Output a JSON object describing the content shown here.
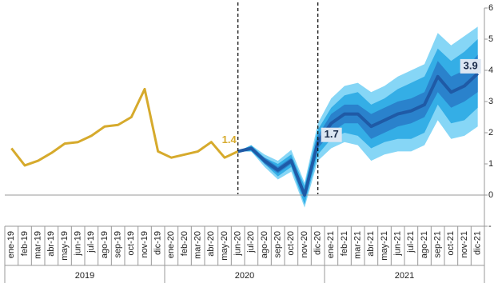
{
  "chart_data": {
    "type": "line",
    "categories": [
      "ene-19",
      "feb-19",
      "mar-19",
      "abr-19",
      "may-19",
      "jun-19",
      "jul-19",
      "ago-19",
      "sep-19",
      "oct-19",
      "nov-19",
      "dic-19",
      "ene-20",
      "feb-20",
      "mar-20",
      "abr-20",
      "may-20",
      "jun-20",
      "jul-20",
      "ago-20",
      "sep-20",
      "oct-20",
      "nov-20",
      "dic-20",
      "ene-21",
      "feb-21",
      "mar-21",
      "abr-21",
      "may-21",
      "jun-21",
      "jul-21",
      "ago-21",
      "sep-21",
      "oct-21",
      "nov-21",
      "dic-21"
    ],
    "groups": [
      "2019",
      "2020",
      "2021"
    ],
    "series": [
      {
        "color": "#d6aa2c",
        "values": [
          1.5,
          0.95,
          1.1,
          1.35,
          1.65,
          1.7,
          1.9,
          2.2,
          2.25,
          2.5,
          3.4,
          1.4,
          1.2,
          1.3,
          1.4,
          1.7,
          1.2,
          1.4,
          null,
          null,
          null,
          null,
          null,
          null,
          null,
          null,
          null,
          null,
          null,
          null,
          null,
          null,
          null,
          null,
          null,
          null
        ]
      },
      {
        "color": "#1f5aa6",
        "values": [
          null,
          null,
          null,
          null,
          null,
          null,
          null,
          null,
          null,
          null,
          null,
          null,
          null,
          null,
          null,
          null,
          null,
          1.4,
          1.5,
          1.1,
          0.8,
          1.1,
          0.0,
          1.7,
          2.3,
          2.6,
          2.6,
          2.2,
          2.4,
          2.6,
          2.7,
          2.9,
          3.8,
          3.3,
          3.5,
          3.9
        ]
      }
    ],
    "bands": [
      {
        "color": "#86d6f6",
        "upper": [
          null,
          null,
          null,
          null,
          null,
          null,
          null,
          null,
          null,
          null,
          null,
          null,
          null,
          null,
          null,
          null,
          null,
          1.4,
          1.6,
          1.3,
          1.1,
          1.45,
          0.4,
          2.3,
          3.1,
          3.5,
          3.6,
          3.3,
          3.5,
          3.8,
          4.0,
          4.2,
          5.2,
          4.8,
          5.1,
          5.4
        ],
        "lower": [
          null,
          null,
          null,
          null,
          null,
          null,
          null,
          null,
          null,
          null,
          null,
          null,
          null,
          null,
          null,
          null,
          null,
          1.4,
          1.4,
          0.9,
          0.5,
          0.75,
          -0.4,
          1.1,
          1.5,
          1.7,
          1.6,
          1.1,
          1.3,
          1.4,
          1.4,
          1.6,
          2.4,
          1.8,
          1.9,
          2.2
        ]
      },
      {
        "color": "#34aee6",
        "upper": [
          null,
          null,
          null,
          null,
          null,
          null,
          null,
          null,
          null,
          null,
          null,
          null,
          null,
          null,
          null,
          null,
          null,
          1.4,
          1.6,
          1.2,
          1.0,
          1.3,
          0.3,
          2.1,
          2.8,
          3.2,
          3.3,
          2.9,
          3.1,
          3.4,
          3.6,
          3.8,
          4.7,
          4.3,
          4.6,
          5.0
        ],
        "lower": [
          null,
          null,
          null,
          null,
          null,
          null,
          null,
          null,
          null,
          null,
          null,
          null,
          null,
          null,
          null,
          null,
          null,
          1.4,
          1.4,
          1.0,
          0.6,
          0.9,
          -0.3,
          1.3,
          1.8,
          2.0,
          1.9,
          1.5,
          1.7,
          1.8,
          1.8,
          2.0,
          2.9,
          2.3,
          2.4,
          2.8
        ]
      },
      {
        "color": "#2a82cc",
        "upper": [
          null,
          null,
          null,
          null,
          null,
          null,
          null,
          null,
          null,
          null,
          null,
          null,
          null,
          null,
          null,
          null,
          null,
          1.4,
          1.5,
          1.2,
          0.9,
          1.2,
          0.1,
          1.9,
          2.6,
          2.9,
          2.9,
          2.6,
          2.8,
          3.0,
          3.1,
          3.3,
          4.3,
          3.8,
          4.0,
          4.5
        ],
        "lower": [
          null,
          null,
          null,
          null,
          null,
          null,
          null,
          null,
          null,
          null,
          null,
          null,
          null,
          null,
          null,
          null,
          null,
          1.4,
          1.5,
          1.0,
          0.7,
          1.0,
          -0.1,
          1.5,
          2.0,
          2.3,
          2.3,
          1.8,
          2.0,
          2.2,
          2.3,
          2.5,
          3.3,
          2.8,
          3.0,
          3.3
        ]
      }
    ],
    "ylim": [
      -1,
      6
    ],
    "yticks": [
      {
        "value": -1,
        "label": "-"
      },
      0,
      1,
      2,
      3,
      4,
      5,
      6
    ]
  }
}
